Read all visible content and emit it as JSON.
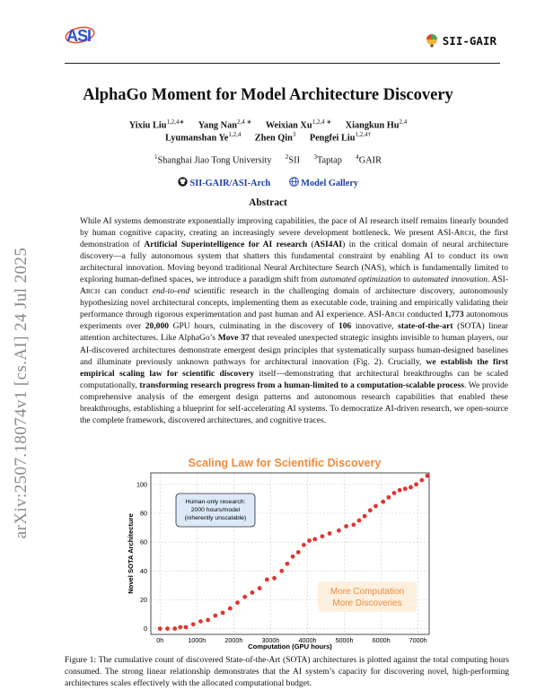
{
  "header": {
    "left_logo_text": "ASI",
    "right_logo_text": "SII-GAIR"
  },
  "paper": {
    "title": "AlphaGo Moment for Model Architecture Discovery",
    "authors_line1": [
      {
        "name": "Yixiu Liu",
        "sup": "1,2,4∗"
      },
      {
        "name": "Yang Nan",
        "sup": "2,4 ∗"
      },
      {
        "name": "Weixian Xu",
        "sup": "1,2,4 ∗"
      },
      {
        "name": "Xiangkun Hu",
        "sup": "2,4"
      }
    ],
    "authors_line2": [
      {
        "name": "Lyumanshan Ye",
        "sup": "1,2,4"
      },
      {
        "name": "Zhen Qin",
        "sup": "3"
      },
      {
        "name": "Pengfei Liu",
        "sup": "1,2,4†"
      }
    ],
    "affiliations": [
      {
        "sup": "1",
        "name": "Shanghai Jiao Tong University"
      },
      {
        "sup": "2",
        "name": "SII"
      },
      {
        "sup": "3",
        "name": "Taptap"
      },
      {
        "sup": "4",
        "name": "GAIR"
      }
    ],
    "links": [
      {
        "icon": "github-icon",
        "label": "SII-GAIR/ASI-Arch"
      },
      {
        "icon": "globe-icon",
        "label": "Model Gallery"
      }
    ],
    "abstract_heading": "Abstract",
    "arxiv_stamp": "arXiv:2507.18074v1  [cs.AI]  24 Jul 2025",
    "caption": "Figure 1: The cumulative count of discovered State-of-the-Art (SOTA) architectures is plotted against the total computing hours consumed. The strong linear relationship demonstrates that the AI system’s capacity for discovering novel, high-performing architectures scales effectively with the allocated computational budget."
  },
  "abstract_segments": [
    {
      "t": "While AI systems demonstrate exponentially improving capabilities, the pace of AI research itself remains linearly bounded by human cognitive capacity, creating an increasingly severe development bottleneck. We present ASI-A",
      "s": ""
    },
    {
      "t": "RCH",
      "s": "sc"
    },
    {
      "t": ", the first demonstration of ",
      "s": ""
    },
    {
      "t": "Artificial Superintelligence for AI research",
      "s": "b"
    },
    {
      "t": " (",
      "s": ""
    },
    {
      "t": "ASI4AI",
      "s": "b"
    },
    {
      "t": ") in the critical domain of neural architecture discovery—a fully autonomous system that shatters this fundamental constraint by enabling AI to conduct its own architectural innovation. Moving beyond traditional Neural Architecture Search (NAS), which is fundamentally limited to exploring human-defined spaces, we introduce a paradigm shift from ",
      "s": ""
    },
    {
      "t": "automated optimization",
      "s": "i"
    },
    {
      "t": " to ",
      "s": ""
    },
    {
      "t": "automated innovation",
      "s": "i"
    },
    {
      "t": ". ASI-A",
      "s": ""
    },
    {
      "t": "RCH",
      "s": "sc"
    },
    {
      "t": " can conduct ",
      "s": ""
    },
    {
      "t": "end-to-end",
      "s": "i"
    },
    {
      "t": " scientific research in the challenging domain of architecture discovery, autonomously hypothesizing novel architectural concepts, implementing them as executable code, training and empirically validating their performance through rigorous experimentation and past human and AI experience. ASI-A",
      "s": ""
    },
    {
      "t": "RCH",
      "s": "sc"
    },
    {
      "t": " conducted ",
      "s": ""
    },
    {
      "t": "1,773",
      "s": "b"
    },
    {
      "t": " autonomous experiments over ",
      "s": ""
    },
    {
      "t": "20,000",
      "s": "b"
    },
    {
      "t": " GPU hours, culminating in the discovery of ",
      "s": ""
    },
    {
      "t": "106",
      "s": "b"
    },
    {
      "t": " innovative, ",
      "s": ""
    },
    {
      "t": "state-of-the-art",
      "s": "b"
    },
    {
      "t": " (SOTA) linear attention architectures. Like AlphaGo’s ",
      "s": ""
    },
    {
      "t": "Move 37",
      "s": "b"
    },
    {
      "t": " that revealed unexpected strategic insights invisible to human players, our AI-discovered architectures demonstrate emergent design principles that systematically surpass human-designed baselines and illuminate previously unknown pathways for architectural innovation (Fig. 2). Crucially, ",
      "s": ""
    },
    {
      "t": "we establish the first empirical scaling law for scientific discovery",
      "s": "b"
    },
    {
      "t": " itself—demonstrating that architectural breakthroughs can be scaled computationally, ",
      "s": ""
    },
    {
      "t": "transforming research progress from a human-limited to a computation-scalable process",
      "s": "b"
    },
    {
      "t": ". We provide comprehensive analysis of the emergent design patterns and autonomous research capabilities that enabled these breakthroughs, establishing a blueprint for self-accelerating AI systems. To democratize AI-driven research, we open-source the complete framework, discovered architectures, and cognitive traces.",
      "s": ""
    }
  ],
  "chart_data": {
    "type": "scatter",
    "title": "Scaling Law for Scientific Discovery",
    "xlabel": "Computation (GPU hours)",
    "ylabel": "Novel SOTA Architecture",
    "xlim": [
      -250,
      7300
    ],
    "ylim": [
      -4,
      108
    ],
    "x_ticks": [
      0,
      1000,
      2000,
      3000,
      4000,
      5000,
      6000,
      7000
    ],
    "x_tick_labels": [
      "0h",
      "1000h",
      "2000h",
      "3000h",
      "4000h",
      "5000h",
      "6000h",
      "7000h"
    ],
    "y_ticks": [
      0,
      20,
      40,
      60,
      80,
      100
    ],
    "grid": true,
    "color": "#e03530",
    "title_color": "#ee8a3c",
    "points": [
      [
        0,
        0
      ],
      [
        200,
        0
      ],
      [
        400,
        0
      ],
      [
        550,
        1
      ],
      [
        700,
        1
      ],
      [
        900,
        3
      ],
      [
        1100,
        5
      ],
      [
        1300,
        6
      ],
      [
        1500,
        9
      ],
      [
        1700,
        11
      ],
      [
        1900,
        14
      ],
      [
        2100,
        18
      ],
      [
        2300,
        22
      ],
      [
        2500,
        25
      ],
      [
        2700,
        28
      ],
      [
        2900,
        34
      ],
      [
        3100,
        35
      ],
      [
        3300,
        40
      ],
      [
        3450,
        45
      ],
      [
        3600,
        50
      ],
      [
        3750,
        53
      ],
      [
        3900,
        58
      ],
      [
        4050,
        61
      ],
      [
        4200,
        62
      ],
      [
        4400,
        64
      ],
      [
        4600,
        66
      ],
      [
        4850,
        68
      ],
      [
        5050,
        71
      ],
      [
        5250,
        72
      ],
      [
        5400,
        75
      ],
      [
        5550,
        78
      ],
      [
        5700,
        82
      ],
      [
        5850,
        85
      ],
      [
        6050,
        88
      ],
      [
        6200,
        91
      ],
      [
        6350,
        94
      ],
      [
        6500,
        96
      ],
      [
        6650,
        97
      ],
      [
        6800,
        98
      ],
      [
        6950,
        100
      ],
      [
        7100,
        103
      ],
      [
        7250,
        106
      ]
    ],
    "annotation_box": {
      "lines": [
        "Human-only research:",
        "2000 hours/model",
        "(inherently unscalable)"
      ]
    },
    "annotation_text": {
      "lines": [
        "More Computation",
        "More Discoveries"
      ]
    }
  }
}
